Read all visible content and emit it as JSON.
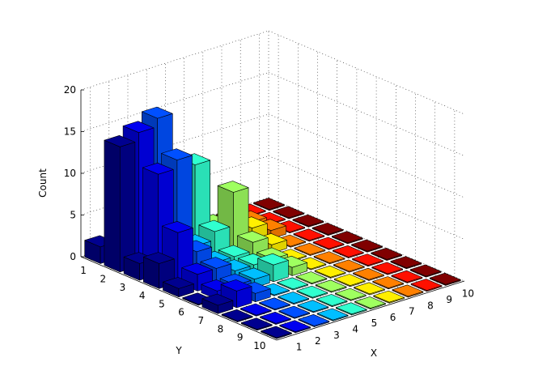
{
  "chart_data": {
    "type": "bar3d",
    "title": "",
    "xlabel": "X",
    "ylabel": "Y",
    "zlabel": "Count",
    "x_ticks": [
      "1",
      "2",
      "3",
      "4",
      "5",
      "6",
      "7",
      "8",
      "9",
      "10"
    ],
    "y_ticks": [
      "1",
      "2",
      "3",
      "4",
      "5",
      "6",
      "7",
      "8",
      "9",
      "10"
    ],
    "z_ticks": [
      "0",
      "5",
      "10",
      "15",
      "20"
    ],
    "zlim": [
      0,
      20
    ],
    "grid": true,
    "colormap": "jet",
    "colors": [
      "#00008F",
      "#0000EF",
      "#0050FF",
      "#00BFFF",
      "#30FFCF",
      "#9FFF60",
      "#FFEF00",
      "#FF8000",
      "#FF1000",
      "#800000"
    ],
    "counts": [
      [
        2,
        1,
        0,
        0,
        0,
        0,
        0,
        0,
        0,
        0
      ],
      [
        15,
        16,
        17,
        8,
        10,
        2,
        1,
        1,
        0,
        0
      ],
      [
        2,
        12,
        13,
        2,
        3,
        7,
        2,
        1,
        0,
        0
      ],
      [
        3,
        6,
        3,
        1,
        1,
        2,
        1,
        0,
        0,
        0
      ],
      [
        1,
        2,
        2,
        1,
        1,
        1,
        0,
        0,
        0,
        0
      ],
      [
        0,
        1,
        1,
        1,
        2,
        1,
        0,
        0,
        0,
        0
      ],
      [
        1,
        2,
        1,
        0,
        0,
        0,
        0,
        0,
        0,
        0
      ],
      [
        0,
        0,
        0,
        0,
        0,
        0,
        0,
        0,
        0,
        0
      ],
      [
        0,
        0,
        0,
        0,
        0,
        0,
        0,
        0,
        0,
        0
      ],
      [
        0,
        0,
        0,
        0,
        0,
        0,
        0,
        0,
        0,
        0
      ]
    ]
  }
}
